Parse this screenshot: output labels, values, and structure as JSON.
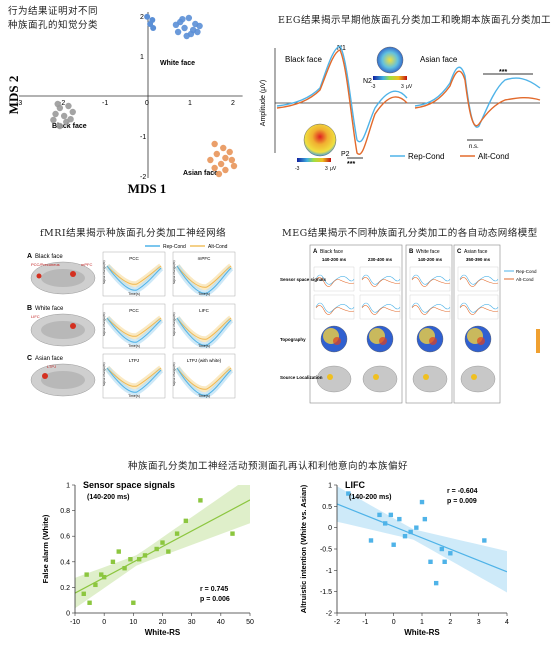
{
  "mds": {
    "caption_line1": "行为结果证明对不同",
    "caption_line2": "种族面孔的知觉分类",
    "xlabel": "MDS 1",
    "ylabel": "MDS 2",
    "xticks": [
      "-3",
      "-2",
      "-1",
      "0",
      "1",
      "2"
    ],
    "yticks": [
      "2",
      "1",
      "-1",
      "-2"
    ],
    "groups": [
      {
        "name": "White face",
        "color": "#5b8fd6",
        "points": [
          [
            0.75,
            1.85
          ],
          [
            0.95,
            1.95
          ],
          [
            1.1,
            1.8
          ],
          [
            0.85,
            1.7
          ],
          [
            1.05,
            1.65
          ],
          [
            0.7,
            1.6
          ],
          [
            1.2,
            1.75
          ],
          [
            0.9,
            1.5
          ],
          [
            0.65,
            1.78
          ],
          [
            1.0,
            1.55
          ],
          [
            1.15,
            1.6
          ],
          [
            0.8,
            1.92
          ]
        ]
      },
      {
        "name": "Black face",
        "color": "#9a9a9a",
        "points": [
          [
            -2.05,
            -0.3
          ],
          [
            -1.85,
            -0.25
          ],
          [
            -2.15,
            -0.45
          ],
          [
            -1.95,
            -0.5
          ],
          [
            -1.75,
            -0.4
          ],
          [
            -2.2,
            -0.6
          ],
          [
            -1.9,
            -0.65
          ],
          [
            -2.05,
            -0.75
          ],
          [
            -1.8,
            -0.58
          ],
          [
            -2.1,
            -0.2
          ]
        ]
      },
      {
        "name": "Asian face",
        "color": "#e8955a",
        "points": [
          [
            1.55,
            -1.2
          ],
          [
            1.75,
            -1.3
          ],
          [
            1.9,
            -1.4
          ],
          [
            1.6,
            -1.45
          ],
          [
            1.8,
            -1.55
          ],
          [
            1.45,
            -1.6
          ],
          [
            1.7,
            -1.7
          ],
          [
            1.95,
            -1.6
          ],
          [
            1.55,
            -1.8
          ],
          [
            1.8,
            -1.85
          ],
          [
            2.0,
            -1.75
          ],
          [
            1.65,
            -1.95
          ]
        ]
      }
    ],
    "extra_blue": [
      [
        -0.02,
        1.98
      ],
      [
        0.1,
        1.9
      ],
      [
        0.05,
        1.8
      ],
      [
        0.12,
        1.7
      ]
    ]
  },
  "eeg": {
    "title": "EEG结果揭示早期他族面孔分类加工和晚期本族面孔分类加工",
    "black_label": "Black face",
    "asian_label": "Asian face",
    "ylabel": "Amplitude (μV)",
    "n1": "N1",
    "n2": "N2",
    "p2": "P2",
    "stars1": "***",
    "stars2": "***",
    "ns": "n.s.",
    "scale_neg": "-3",
    "scale_pos": "3",
    "scale_unit": "μV",
    "legend_rep": "Rep-Cond",
    "legend_alt": "Alt-Cond",
    "rep_color": "#4fb3e8",
    "alt_color": "#e26a2c"
  },
  "fmri": {
    "title": "fMRI结果揭示种族面孔分类加工神经网络",
    "legend_rep": "Rep-Cond",
    "legend_alt": "Alt-Cond",
    "rows": [
      {
        "letter": "A",
        "label": "Black face",
        "region_label": "PCC/Precuneus",
        "region2": "mPFC",
        "plot1": "PCC",
        "plot2": "mPFC"
      },
      {
        "letter": "B",
        "label": "White face",
        "region_label": "LIFC",
        "region2": "",
        "plot1": "PCC",
        "plot2": "LIFC"
      },
      {
        "letter": "C",
        "label": "Asian face",
        "region_label": "LTPJ",
        "region2": "",
        "plot1": "LTPJ",
        "plot2": "LTPJ (with white)"
      }
    ],
    "ylabel": "Signal change(%)",
    "xlabel": "Time(s)"
  },
  "meg": {
    "title": "MEG结果揭示不同种族面孔分类加工的各自动态网络模型",
    "cols": [
      {
        "letter": "A",
        "label": "Black face",
        "windows": [
          "140-200 ms",
          "230-400 ms"
        ]
      },
      {
        "letter": "B",
        "label": "White face",
        "windows": [
          "140-200 ms"
        ]
      },
      {
        "letter": "C",
        "label": "Asian face",
        "windows": [
          "350-390 ms"
        ]
      }
    ],
    "rows": [
      "Sensor space signals",
      "Topography",
      "Source Localization"
    ],
    "legend_rep": "Rep-Cond",
    "legend_alt": "Alt-Cond"
  },
  "bottom": {
    "title": "种族面孔分类加工神经活动预测面孔再认和利他意向的本族偏好"
  },
  "chart_data": [
    {
      "type": "scatter",
      "title": "Sensor space signals",
      "subtitle": "(140-200 ms)",
      "xlabel": "White-RS",
      "ylabel": "False alarm (White)",
      "xlim": [
        -10,
        50
      ],
      "ylim": [
        0,
        1
      ],
      "xticks": [
        -10,
        0,
        10,
        20,
        30,
        40,
        50
      ],
      "yticks": [
        0,
        0.2,
        0.4,
        0.6,
        0.8,
        1
      ],
      "color": "#8cc63f",
      "stat_r": "r = 0.745",
      "stat_p": "p = 0.006",
      "x": [
        -7,
        -6,
        -5,
        -3,
        -1,
        0,
        3,
        5,
        7,
        9,
        10,
        12,
        14,
        18,
        20,
        22,
        25,
        28,
        33,
        44
      ],
      "y": [
        0.15,
        0.3,
        0.08,
        0.22,
        0.3,
        0.28,
        0.4,
        0.48,
        0.35,
        0.42,
        0.08,
        0.42,
        0.45,
        0.5,
        0.55,
        0.48,
        0.62,
        0.72,
        0.88,
        0.62
      ]
    },
    {
      "type": "scatter",
      "title": "LIFC",
      "subtitle": "(140-200 ms)",
      "xlabel": "White-RS",
      "ylabel": "Altruistic intention (White vs. Asian)",
      "xlim": [
        -2,
        4
      ],
      "ylim": [
        -2,
        1
      ],
      "xticks": [
        -2,
        -1,
        0,
        1,
        2,
        3,
        4
      ],
      "yticks": [
        -2,
        -1.5,
        -1,
        -0.5,
        0,
        0.5,
        1
      ],
      "color": "#4fb3e8",
      "stat_r": "r = -0.604",
      "stat_p": "p = 0.009",
      "x": [
        -1.6,
        -0.8,
        -0.3,
        -0.1,
        0.2,
        0.4,
        0.6,
        0.8,
        1.0,
        1.1,
        1.3,
        1.5,
        1.7,
        1.8,
        2.0,
        3.2,
        -0.5,
        0.0
      ],
      "y": [
        0.8,
        -0.3,
        0.1,
        0.3,
        0.2,
        -0.2,
        -0.1,
        0.0,
        0.6,
        0.2,
        -0.8,
        -1.3,
        -0.5,
        -0.8,
        -0.6,
        -0.3,
        0.3,
        -0.4
      ]
    }
  ]
}
